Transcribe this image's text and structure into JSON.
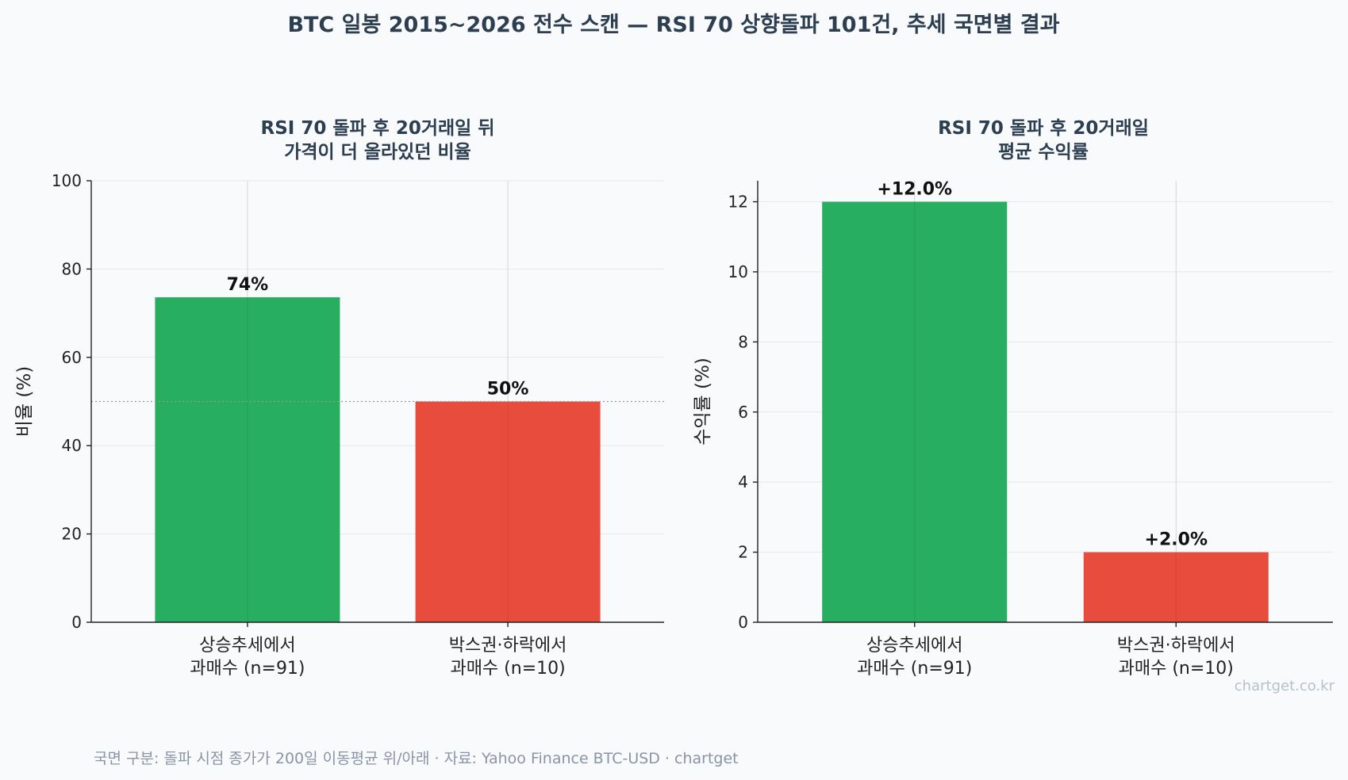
{
  "title": "BTC 일봉 2015~2026 전수 스캔 — RSI 70 상향돌파 101건, 추세 국면별 결과",
  "footer": "국면 구분: 돌파 시점 종가가 200일 이동평균 위/아래 · 자료: Yahoo Finance BTC-USD · chartget",
  "watermark": "chartget.co.kr",
  "colors": {
    "up": "#27ae60",
    "down": "#e74c3c",
    "title": "#2c3e50"
  },
  "chart_data": [
    {
      "type": "bar",
      "title": [
        "RSI 70 돌파 후 20거래일 뒤",
        "가격이 더 올라있던 비율"
      ],
      "ylabel": "비율 (%)",
      "ylim": [
        0,
        100
      ],
      "yticks": [
        0,
        20,
        40,
        60,
        80,
        100
      ],
      "grid": true,
      "reference_line": 50,
      "categories": [
        [
          "상승추세에서",
          "과매수 (n=91)"
        ],
        [
          "박스권·하락에서",
          "과매수 (n=10)"
        ]
      ],
      "values": [
        73.6,
        50
      ],
      "labels": [
        "74%",
        "50%"
      ]
    },
    {
      "type": "bar",
      "title": [
        "RSI 70 돌파 후 20거래일",
        "평균 수익률"
      ],
      "ylabel": "수익률 (%)",
      "ylim": [
        0,
        12.6
      ],
      "yticks": [
        0,
        2,
        4,
        6,
        8,
        10,
        12
      ],
      "grid": true,
      "categories": [
        [
          "상승추세에서",
          "과매수 (n=91)"
        ],
        [
          "박스권·하락에서",
          "과매수 (n=10)"
        ]
      ],
      "values": [
        12.0,
        2.0
      ],
      "labels": [
        "+12.0%",
        "+2.0%"
      ]
    }
  ]
}
